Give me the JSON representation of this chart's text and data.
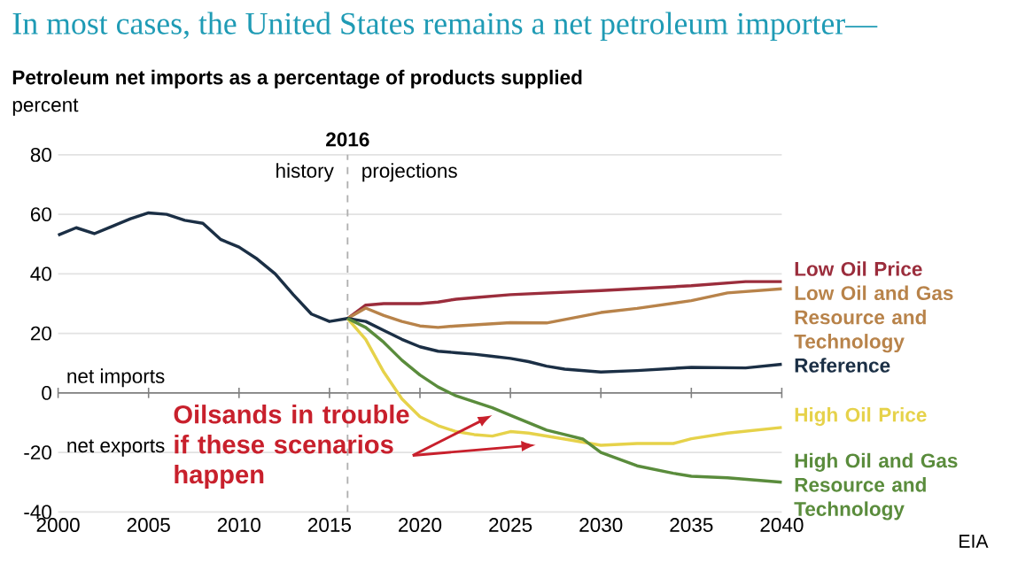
{
  "chart_data": {
    "type": "line",
    "title": "In most cases, the United States remains a net petroleum importer—",
    "subtitle": "Petroleum net imports as a percentage of products supplied",
    "ylabel": "percent",
    "xlim": [
      2000,
      2040
    ],
    "xticks": [
      2000,
      2005,
      2010,
      2015,
      2020,
      2025,
      2030,
      2035,
      2040
    ],
    "ylim": [
      -40,
      80
    ],
    "yticks": [
      -40,
      -20,
      0,
      20,
      40,
      60,
      80
    ],
    "grid": "y",
    "series": [
      {
        "name": "Low Oil Price",
        "color": "#9b2d3c",
        "x": [
          2016,
          2017,
          2018,
          2020,
          2021,
          2022,
          2023,
          2025,
          2030,
          2035,
          2038,
          2040
        ],
        "values": [
          25,
          29.5,
          30,
          30,
          30.5,
          31.5,
          32,
          33,
          34.4,
          36,
          37.4,
          37.4
        ]
      },
      {
        "name": "Low Oil and Gas Resource and Technology",
        "color": "#b8834a",
        "x": [
          2016,
          2017,
          2018,
          2019,
          2020,
          2021,
          2022,
          2025,
          2027,
          2030,
          2032,
          2035,
          2037,
          2040
        ],
        "values": [
          25,
          28.5,
          26,
          24,
          22.5,
          22,
          22.5,
          23.6,
          23.5,
          27,
          28.4,
          31,
          33.6,
          35
        ]
      },
      {
        "name": "Reference",
        "color": "#1b2f45",
        "x": [
          2000,
          2001,
          2002,
          2003,
          2004,
          2005,
          2006,
          2007,
          2008,
          2009,
          2010,
          2011,
          2012,
          2013,
          2014,
          2015,
          2016,
          2017,
          2018,
          2019,
          2020,
          2021,
          2022,
          2023,
          2024,
          2025,
          2026,
          2027,
          2028,
          2030,
          2032,
          2035,
          2038,
          2040
        ],
        "values": [
          53,
          55.5,
          53.5,
          56,
          58.5,
          60.5,
          60,
          58,
          57,
          51.5,
          49,
          45,
          40,
          33,
          26.5,
          24,
          25,
          24,
          21,
          18,
          15.5,
          14,
          13.5,
          13,
          12.3,
          11.6,
          10.5,
          9,
          8,
          7,
          7.5,
          8.6,
          8.4,
          9.6
        ]
      },
      {
        "name": "High Oil Price",
        "color": "#e6d24a",
        "x": [
          2016,
          2017,
          2018,
          2019,
          2020,
          2021,
          2022,
          2023,
          2024,
          2025,
          2026,
          2028,
          2030,
          2032,
          2034,
          2035,
          2037,
          2040
        ],
        "values": [
          25,
          18,
          7,
          -2,
          -8,
          -11,
          -13,
          -14,
          -14.5,
          -13,
          -13.5,
          -15.5,
          -17.6,
          -17,
          -17,
          -15.4,
          -13.5,
          -11.6
        ]
      },
      {
        "name": "High Oil and Gas Resource and Technology",
        "color": "#5a8c3c",
        "x": [
          2016,
          2017,
          2018,
          2019,
          2020,
          2021,
          2022,
          2023,
          2024,
          2025,
          2026,
          2027,
          2028,
          2029,
          2030,
          2032,
          2034,
          2035,
          2037,
          2040
        ],
        "values": [
          25,
          22,
          17,
          11,
          6,
          2,
          -1,
          -3,
          -5,
          -7.5,
          -10,
          -12.5,
          -14,
          -15.5,
          -20,
          -24.5,
          -27,
          -28,
          -28.5,
          -30
        ]
      }
    ],
    "ref_lines": [
      {
        "axis": "x",
        "value": 2016,
        "label": "2016",
        "color": "#b0b0b0",
        "line_style": "dashed"
      }
    ],
    "annotations": [
      "history",
      "projections",
      "net imports",
      "net exports",
      {
        "text": "Oilsands in trouble if these scenarios happen",
        "x": 2024,
        "y": -7.5
      },
      "EIA"
    ]
  }
}
